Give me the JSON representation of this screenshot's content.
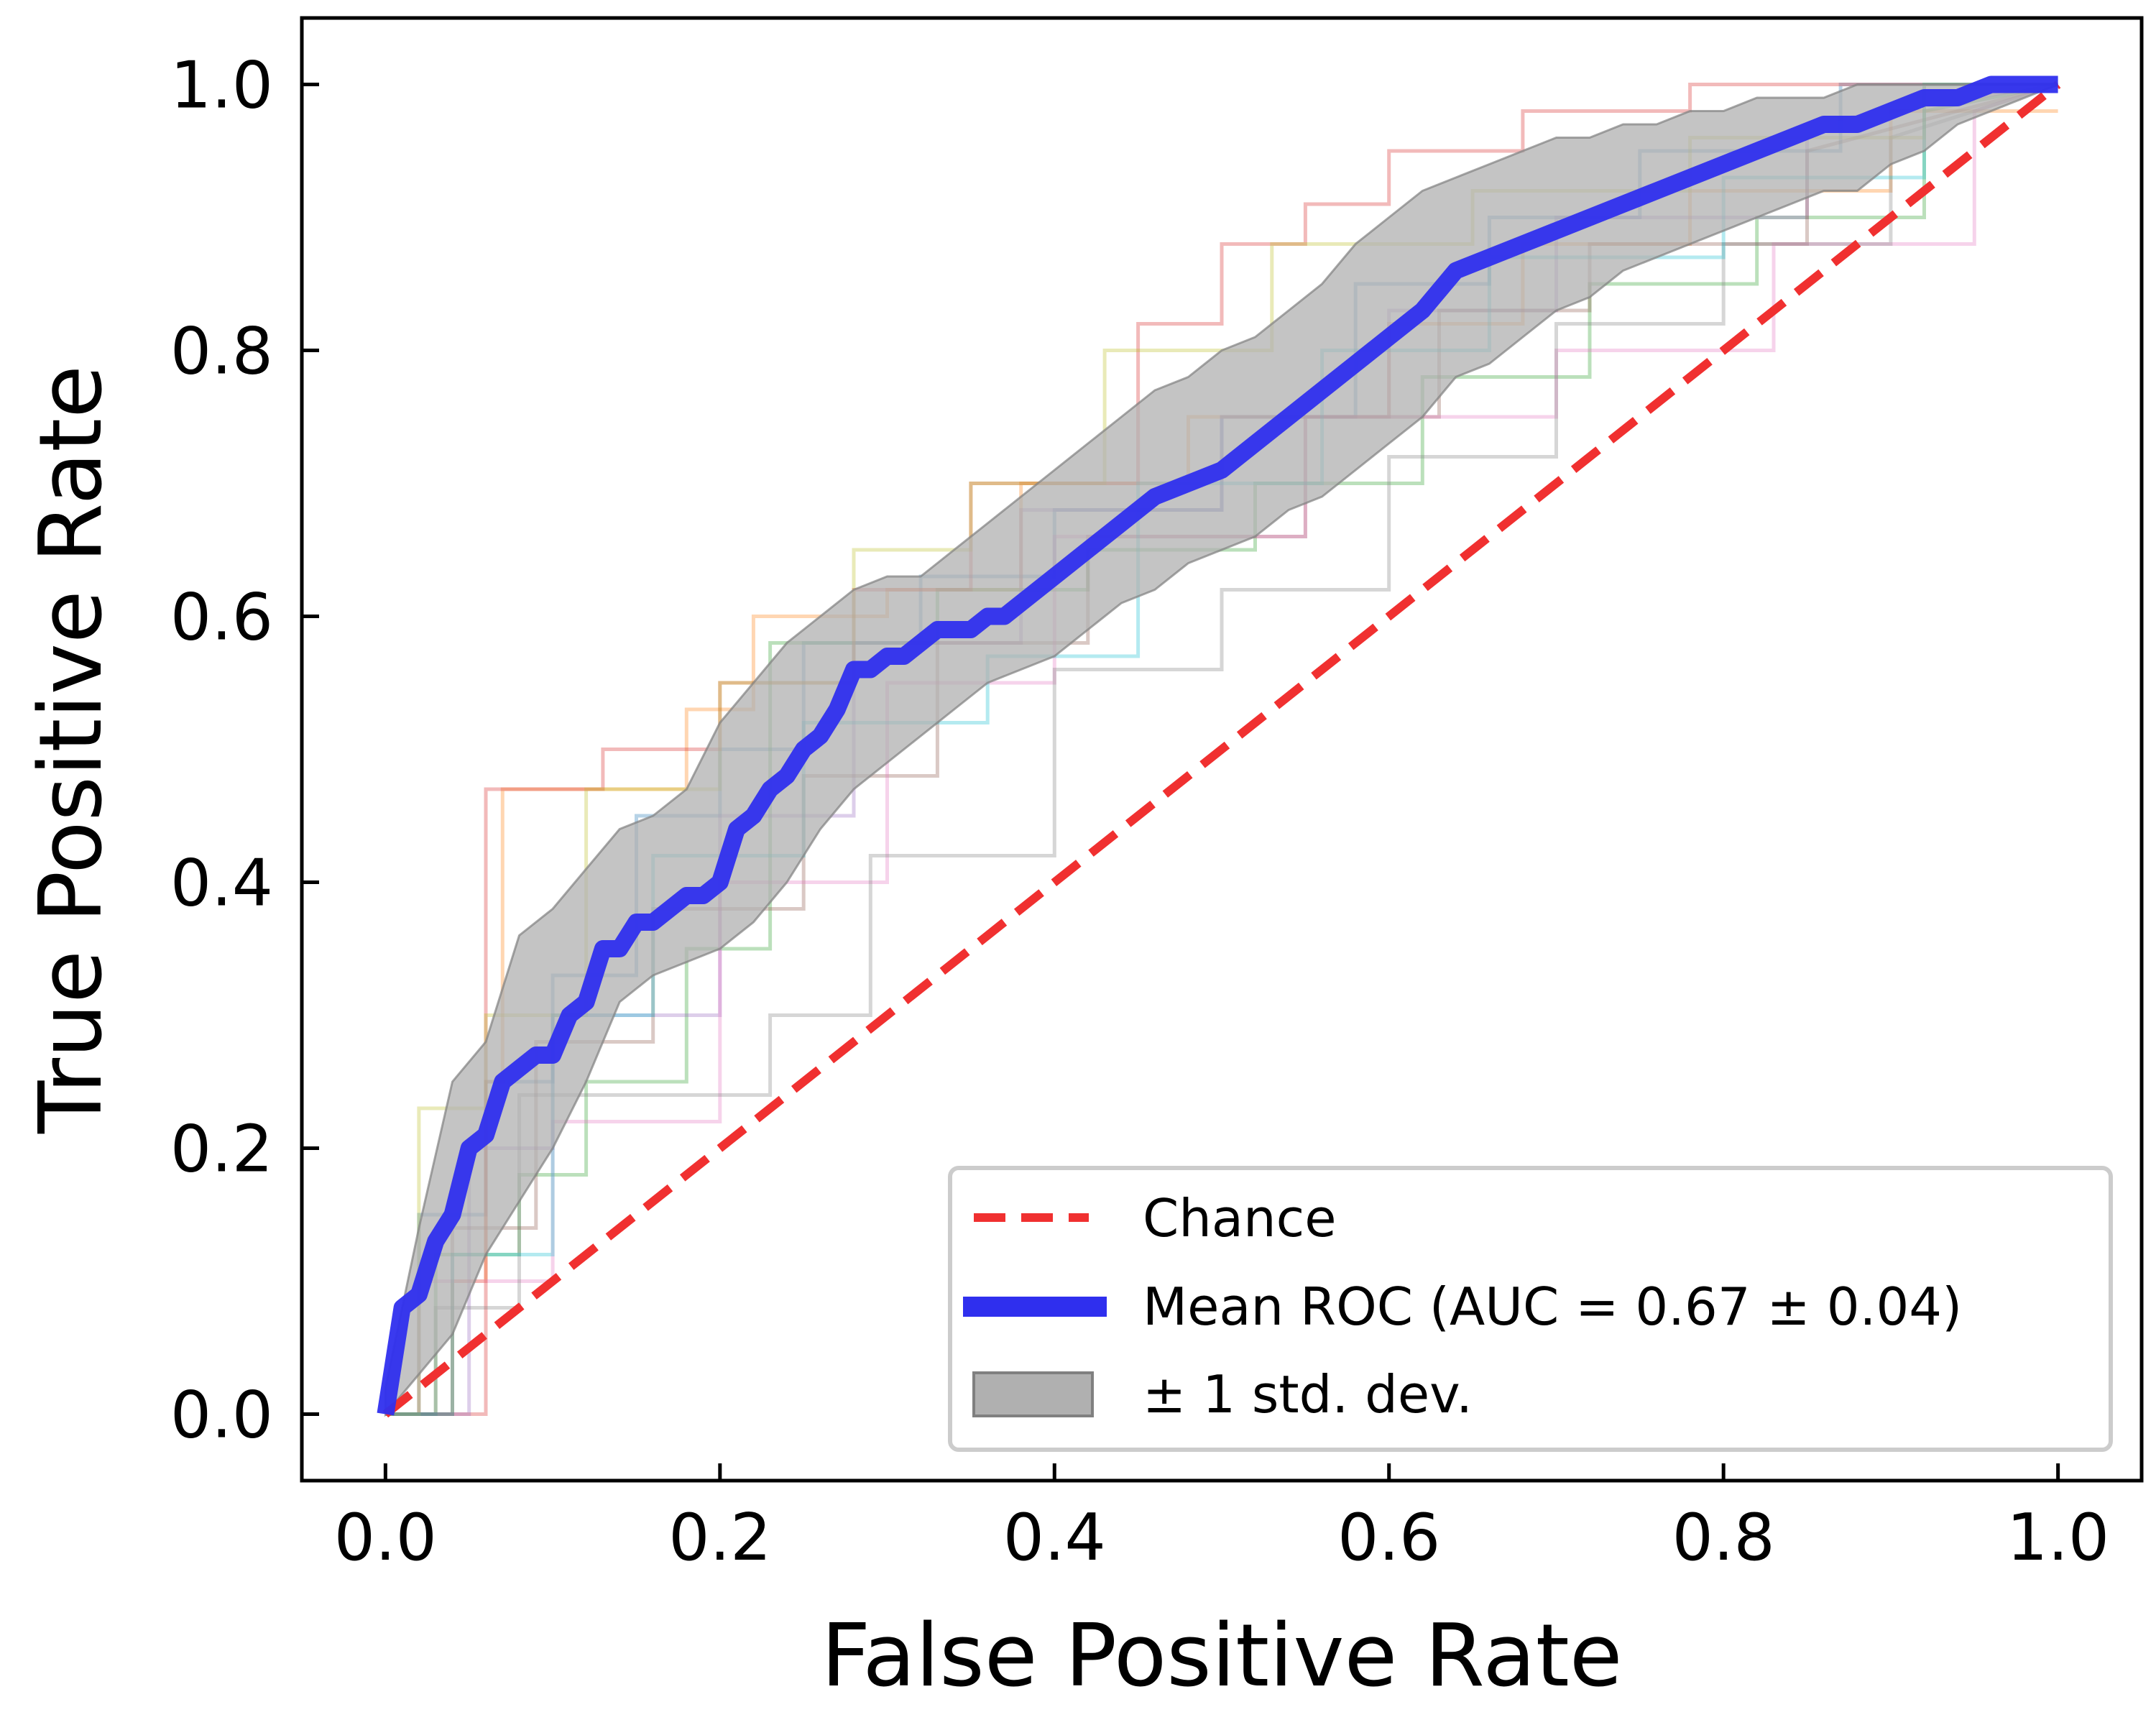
{
  "chart_data": {
    "type": "line",
    "title": "",
    "xlabel": "False Positive Rate",
    "ylabel": "True Positive Rate",
    "xlim": [
      -0.05,
      1.05
    ],
    "ylim": [
      -0.05,
      1.05
    ],
    "xticks": [
      "0.0",
      "0.2",
      "0.4",
      "0.6",
      "0.8",
      "1.0"
    ],
    "yticks": [
      "0.0",
      "0.2",
      "0.4",
      "0.6",
      "0.8",
      "1.0"
    ],
    "grid": false,
    "legend_position": "lower-right",
    "legend": {
      "chance": "Chance",
      "mean": "Mean ROC (AUC = 0.67 ± 0.04)",
      "band": "± 1 std. dev."
    },
    "colors": {
      "chance": "#f03030",
      "mean": "#2f2fee",
      "band": "#b0b0b0",
      "folds": [
        "#1f77b4",
        "#ff7f0e",
        "#2ca02c",
        "#d62728",
        "#9467bd",
        "#8c564b",
        "#e377c2",
        "#7f7f7f",
        "#bcbd22",
        "#17becf"
      ]
    },
    "chance": {
      "x": [
        0,
        1
      ],
      "y": [
        0,
        1
      ]
    },
    "mean_roc": {
      "x": [
        0,
        0.01,
        0.02,
        0.03,
        0.04,
        0.05,
        0.06,
        0.07,
        0.08,
        0.09,
        0.1,
        0.11,
        0.12,
        0.13,
        0.14,
        0.15,
        0.16,
        0.17,
        0.18,
        0.19,
        0.2,
        0.21,
        0.22,
        0.23,
        0.24,
        0.25,
        0.26,
        0.27,
        0.28,
        0.29,
        0.3,
        0.31,
        0.32,
        0.33,
        0.34,
        0.35,
        0.36,
        0.37,
        0.38,
        0.39,
        0.4,
        0.42,
        0.44,
        0.46,
        0.48,
        0.5,
        0.52,
        0.54,
        0.56,
        0.58,
        0.6,
        0.62,
        0.64,
        0.66,
        0.68,
        0.7,
        0.72,
        0.74,
        0.76,
        0.78,
        0.8,
        0.82,
        0.84,
        0.86,
        0.88,
        0.9,
        0.92,
        0.94,
        0.96,
        0.98,
        1.0
      ],
      "y": [
        0,
        0.08,
        0.09,
        0.13,
        0.15,
        0.2,
        0.21,
        0.25,
        0.26,
        0.27,
        0.27,
        0.3,
        0.31,
        0.35,
        0.35,
        0.37,
        0.37,
        0.38,
        0.39,
        0.39,
        0.4,
        0.44,
        0.45,
        0.47,
        0.48,
        0.5,
        0.51,
        0.53,
        0.56,
        0.56,
        0.57,
        0.57,
        0.58,
        0.59,
        0.59,
        0.59,
        0.6,
        0.6,
        0.61,
        0.62,
        0.63,
        0.65,
        0.67,
        0.69,
        0.7,
        0.71,
        0.73,
        0.75,
        0.77,
        0.79,
        0.81,
        0.83,
        0.86,
        0.87,
        0.88,
        0.89,
        0.9,
        0.91,
        0.92,
        0.93,
        0.94,
        0.95,
        0.96,
        0.97,
        0.97,
        0.98,
        0.99,
        0.99,
        1.0,
        1.0,
        1.0
      ]
    },
    "std_band": {
      "x": [
        0,
        0.02,
        0.04,
        0.06,
        0.08,
        0.1,
        0.12,
        0.14,
        0.16,
        0.18,
        0.2,
        0.22,
        0.24,
        0.26,
        0.28,
        0.3,
        0.32,
        0.34,
        0.36,
        0.38,
        0.4,
        0.42,
        0.44,
        0.46,
        0.48,
        0.5,
        0.52,
        0.54,
        0.56,
        0.58,
        0.6,
        0.62,
        0.64,
        0.66,
        0.68,
        0.7,
        0.72,
        0.74,
        0.76,
        0.78,
        0.8,
        0.82,
        0.84,
        0.86,
        0.88,
        0.9,
        0.92,
        0.94,
        0.96,
        0.98,
        1.0
      ],
      "upper": [
        0.02,
        0.14,
        0.25,
        0.28,
        0.36,
        0.38,
        0.41,
        0.44,
        0.45,
        0.47,
        0.52,
        0.55,
        0.58,
        0.6,
        0.62,
        0.63,
        0.63,
        0.65,
        0.67,
        0.69,
        0.71,
        0.73,
        0.75,
        0.77,
        0.78,
        0.8,
        0.81,
        0.83,
        0.85,
        0.88,
        0.9,
        0.92,
        0.93,
        0.94,
        0.95,
        0.96,
        0.96,
        0.97,
        0.97,
        0.98,
        0.98,
        0.99,
        0.99,
        0.99,
        1.0,
        1.0,
        1.0,
        1.0,
        1.0,
        1.0,
        1.0
      ],
      "lower": [
        0.0,
        0.03,
        0.06,
        0.12,
        0.16,
        0.2,
        0.25,
        0.31,
        0.33,
        0.34,
        0.35,
        0.37,
        0.4,
        0.44,
        0.47,
        0.49,
        0.51,
        0.53,
        0.55,
        0.56,
        0.57,
        0.59,
        0.61,
        0.62,
        0.64,
        0.65,
        0.66,
        0.68,
        0.69,
        0.71,
        0.73,
        0.75,
        0.78,
        0.79,
        0.81,
        0.83,
        0.84,
        0.86,
        0.87,
        0.88,
        0.89,
        0.9,
        0.91,
        0.92,
        0.92,
        0.94,
        0.95,
        0.97,
        0.98,
        0.99,
        1.0
      ]
    },
    "folds": [
      {
        "x": [
          0,
          0.02,
          0.02,
          0.06,
          0.06,
          0.1,
          0.1,
          0.15,
          0.15,
          0.2,
          0.2,
          0.25,
          0.25,
          0.32,
          0.32,
          0.4,
          0.4,
          0.5,
          0.5,
          0.58,
          0.58,
          0.66,
          0.66,
          0.75,
          0.75,
          0.87,
          0.87,
          1.0
        ],
        "y": [
          0,
          0,
          0.15,
          0.15,
          0.25,
          0.25,
          0.33,
          0.33,
          0.45,
          0.45,
          0.5,
          0.5,
          0.58,
          0.58,
          0.63,
          0.63,
          0.68,
          0.68,
          0.75,
          0.75,
          0.85,
          0.85,
          0.9,
          0.9,
          0.95,
          0.95,
          1.0,
          1.0
        ]
      },
      {
        "x": [
          0,
          0.04,
          0.04,
          0.06,
          0.06,
          0.07,
          0.07,
          0.18,
          0.18,
          0.22,
          0.22,
          0.3,
          0.3,
          0.38,
          0.38,
          0.48,
          0.48,
          0.6,
          0.6,
          0.68,
          0.68,
          0.78,
          0.78,
          0.9,
          0.9,
          1.0
        ],
        "y": [
          0,
          0,
          0.1,
          0.1,
          0.25,
          0.25,
          0.47,
          0.47,
          0.53,
          0.53,
          0.6,
          0.6,
          0.62,
          0.62,
          0.7,
          0.7,
          0.75,
          0.75,
          0.82,
          0.82,
          0.88,
          0.88,
          0.92,
          0.92,
          0.98,
          0.98
        ]
      },
      {
        "x": [
          0,
          0.03,
          0.03,
          0.08,
          0.08,
          0.12,
          0.12,
          0.18,
          0.18,
          0.23,
          0.23,
          0.33,
          0.33,
          0.42,
          0.42,
          0.52,
          0.52,
          0.62,
          0.62,
          0.72,
          0.72,
          0.82,
          0.82,
          0.92,
          0.92,
          1.0
        ],
        "y": [
          0,
          0,
          0.12,
          0.12,
          0.18,
          0.18,
          0.25,
          0.25,
          0.35,
          0.35,
          0.58,
          0.58,
          0.62,
          0.62,
          0.65,
          0.65,
          0.7,
          0.7,
          0.78,
          0.78,
          0.85,
          0.85,
          0.9,
          0.9,
          0.98,
          1.0
        ]
      },
      {
        "x": [
          0,
          0.06,
          0.06,
          0.13,
          0.13,
          0.2,
          0.2,
          0.28,
          0.28,
          0.35,
          0.35,
          0.45,
          0.45,
          0.5,
          0.5,
          0.55,
          0.55,
          0.6,
          0.6,
          0.68,
          0.68,
          0.78,
          0.78,
          1.0
        ],
        "y": [
          0,
          0,
          0.47,
          0.47,
          0.5,
          0.5,
          0.55,
          0.55,
          0.62,
          0.62,
          0.7,
          0.7,
          0.82,
          0.82,
          0.88,
          0.88,
          0.91,
          0.91,
          0.95,
          0.95,
          0.98,
          0.98,
          1.0,
          1.0
        ]
      },
      {
        "x": [
          0,
          0.05,
          0.05,
          0.1,
          0.1,
          0.2,
          0.2,
          0.28,
          0.28,
          0.38,
          0.38,
          0.5,
          0.5,
          0.6,
          0.6,
          0.7,
          0.7,
          0.85,
          0.85,
          1.0
        ],
        "y": [
          0,
          0,
          0.2,
          0.2,
          0.3,
          0.3,
          0.45,
          0.45,
          0.58,
          0.58,
          0.68,
          0.68,
          0.75,
          0.75,
          0.83,
          0.83,
          0.9,
          0.9,
          0.97,
          1.0
        ]
      },
      {
        "x": [
          0,
          0.04,
          0.04,
          0.09,
          0.09,
          0.16,
          0.16,
          0.25,
          0.25,
          0.33,
          0.33,
          0.42,
          0.42,
          0.55,
          0.55,
          0.63,
          0.63,
          0.72,
          0.72,
          0.85,
          0.85,
          1.0
        ],
        "y": [
          0,
          0,
          0.14,
          0.14,
          0.28,
          0.28,
          0.38,
          0.38,
          0.48,
          0.48,
          0.58,
          0.58,
          0.66,
          0.66,
          0.75,
          0.75,
          0.83,
          0.83,
          0.88,
          0.88,
          0.95,
          1.0
        ]
      },
      {
        "x": [
          0,
          0.02,
          0.02,
          0.1,
          0.1,
          0.2,
          0.2,
          0.3,
          0.3,
          0.4,
          0.4,
          0.55,
          0.55,
          0.7,
          0.7,
          0.83,
          0.83,
          0.95,
          0.95,
          1.0
        ],
        "y": [
          0,
          0,
          0.1,
          0.1,
          0.22,
          0.22,
          0.4,
          0.4,
          0.55,
          0.55,
          0.66,
          0.66,
          0.75,
          0.75,
          0.8,
          0.8,
          0.88,
          0.88,
          0.98,
          1.0
        ]
      },
      {
        "x": [
          0,
          0.03,
          0.03,
          0.08,
          0.08,
          0.23,
          0.23,
          0.29,
          0.29,
          0.4,
          0.4,
          0.5,
          0.5,
          0.6,
          0.6,
          0.7,
          0.7,
          0.8,
          0.8,
          0.9,
          0.9,
          1.0
        ],
        "y": [
          0,
          0,
          0.08,
          0.08,
          0.24,
          0.24,
          0.3,
          0.3,
          0.42,
          0.42,
          0.56,
          0.56,
          0.62,
          0.62,
          0.72,
          0.72,
          0.82,
          0.82,
          0.88,
          0.88,
          0.96,
          1.0
        ]
      },
      {
        "x": [
          0,
          0.02,
          0.02,
          0.06,
          0.06,
          0.12,
          0.12,
          0.2,
          0.2,
          0.28,
          0.28,
          0.35,
          0.35,
          0.43,
          0.43,
          0.53,
          0.53,
          0.65,
          0.65,
          0.78,
          0.78,
          0.92,
          0.92,
          1.0
        ],
        "y": [
          0,
          0,
          0.23,
          0.23,
          0.3,
          0.3,
          0.47,
          0.47,
          0.55,
          0.55,
          0.65,
          0.65,
          0.7,
          0.7,
          0.8,
          0.8,
          0.88,
          0.88,
          0.92,
          0.92,
          0.96,
          0.96,
          1.0,
          1.0
        ]
      },
      {
        "x": [
          0,
          0.04,
          0.04,
          0.1,
          0.1,
          0.16,
          0.16,
          0.25,
          0.25,
          0.36,
          0.36,
          0.45,
          0.45,
          0.56,
          0.56,
          0.66,
          0.66,
          0.8,
          0.8,
          0.92,
          0.92,
          1.0
        ],
        "y": [
          0,
          0,
          0.12,
          0.12,
          0.3,
          0.3,
          0.42,
          0.42,
          0.52,
          0.52,
          0.57,
          0.57,
          0.7,
          0.7,
          0.8,
          0.8,
          0.87,
          0.87,
          0.93,
          0.93,
          1.0,
          1.0
        ]
      }
    ]
  }
}
